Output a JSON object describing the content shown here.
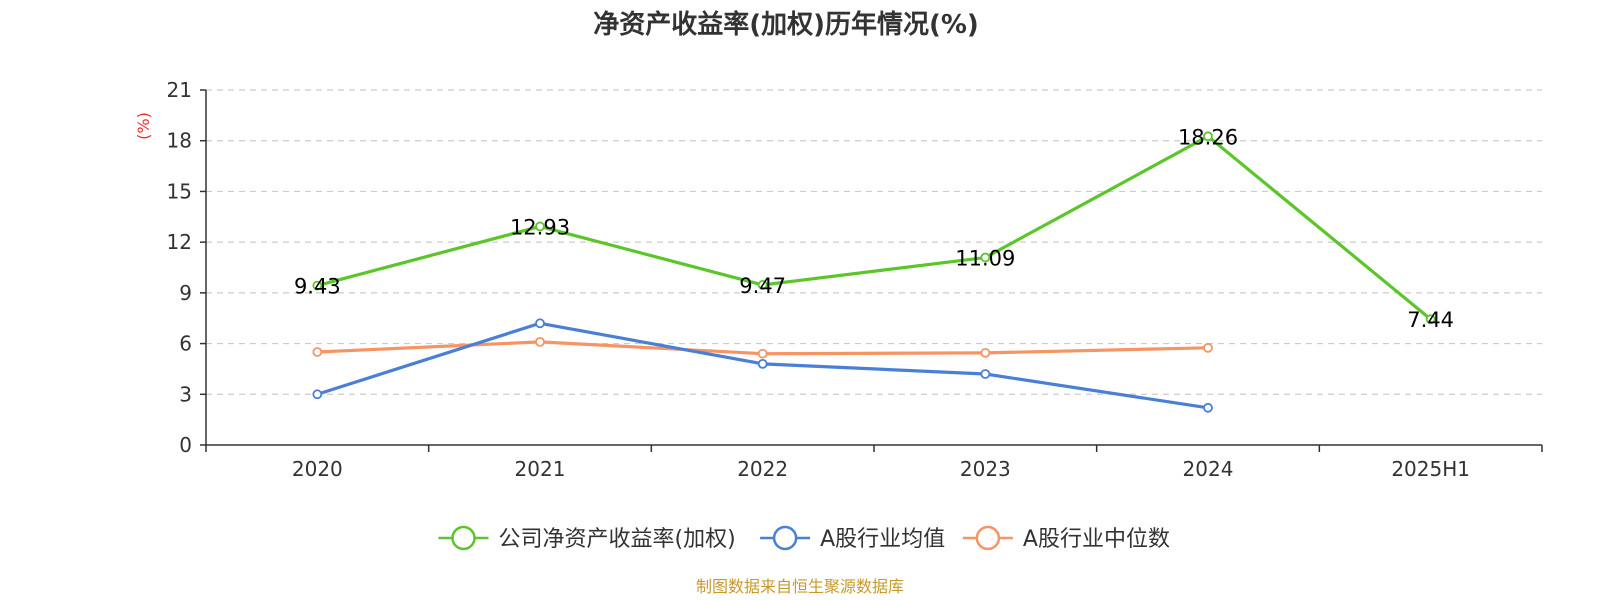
{
  "chart_data": {
    "type": "line",
    "title": "净资产收益率(加权)历年情况(%)",
    "xlabel": "",
    "ylabel": "(%)",
    "categories": [
      "2020",
      "2021",
      "2022",
      "2023",
      "2024",
      "2025H1"
    ],
    "ylim": [
      0,
      21
    ],
    "yticks": [
      0,
      3,
      6,
      9,
      12,
      15,
      18,
      21
    ],
    "grid": true,
    "legend_position": "bottom",
    "series": [
      {
        "name": "公司净资产收益率(加权)",
        "color": "#5bc52a",
        "values": [
          9.43,
          12.93,
          9.47,
          11.09,
          18.26,
          7.44
        ],
        "labels": [
          "9.43",
          "12.93",
          "9.47",
          "11.09",
          "18.26",
          "7.44"
        ],
        "show_labels": true
      },
      {
        "name": "A股行业均值",
        "color": "#4a7fd6",
        "values": [
          3.0,
          7.2,
          4.8,
          4.2,
          2.2,
          null
        ],
        "show_labels": false
      },
      {
        "name": "A股行业中位数",
        "color": "#f79464",
        "values": [
          5.5,
          6.1,
          5.4,
          5.45,
          5.75,
          null
        ],
        "show_labels": false
      }
    ],
    "source": "制图数据来自恒生聚源数据库"
  }
}
